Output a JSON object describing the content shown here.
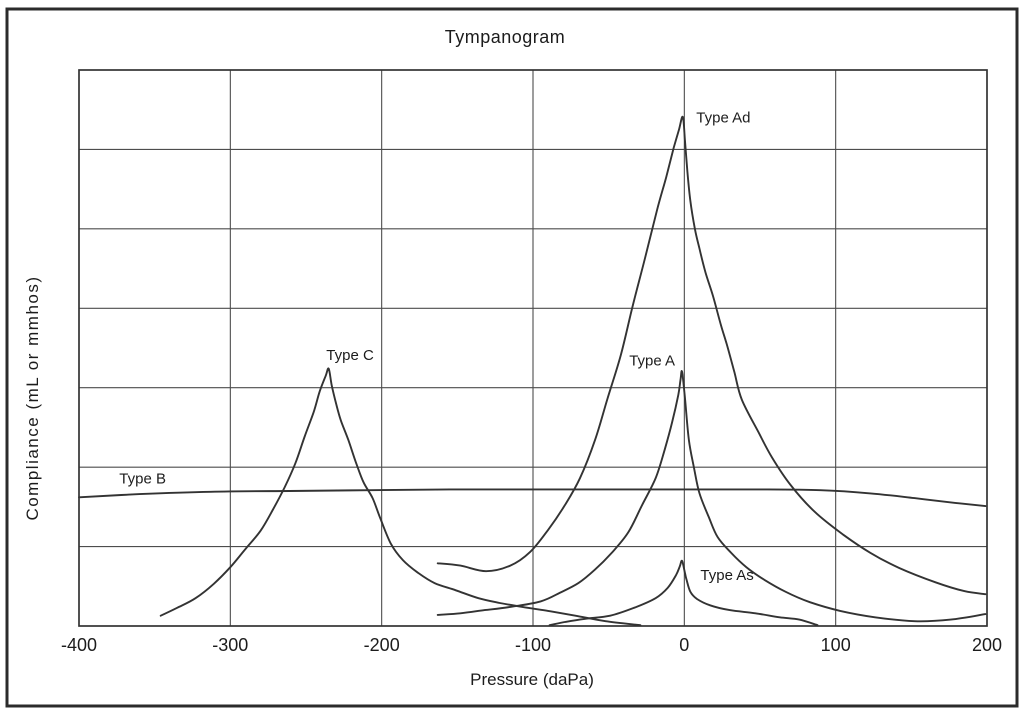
{
  "chart_data": {
    "type": "line",
    "title": "Tympanogram",
    "xlabel": "Pressure (daPa)",
    "ylabel": "Compliance (mL or mmhos)",
    "x_range": [
      -400,
      200
    ],
    "y_range": [
      0,
      7
    ],
    "x_ticks": [
      -400,
      -300,
      -200,
      -100,
      0,
      100,
      200
    ],
    "x_tick_labels": [
      "-400",
      "-300",
      "-200",
      "-100",
      "0",
      "100",
      "200"
    ],
    "y_axis_numeric_labels_shown": false,
    "grid": true,
    "y_gridline_rows": 7,
    "legend_position": "inline-labels",
    "series": [
      {
        "name": "Type Ad",
        "peak": {
          "pressure": 0,
          "compliance": 6.4
        },
        "label_pos": {
          "pressure": 7.9,
          "compliance": 6.4
        },
        "points": [
          [
            -163,
            0.79
          ],
          [
            -148,
            0.76
          ],
          [
            -131,
            0.69
          ],
          [
            -115,
            0.76
          ],
          [
            -102,
            0.93
          ],
          [
            -90,
            1.21
          ],
          [
            -79,
            1.52
          ],
          [
            -69,
            1.86
          ],
          [
            -59,
            2.34
          ],
          [
            -51,
            2.85
          ],
          [
            -42,
            3.41
          ],
          [
            -34,
            4.04
          ],
          [
            -26,
            4.63
          ],
          [
            -18,
            5.24
          ],
          [
            -12,
            5.65
          ],
          [
            -7,
            6.02
          ],
          [
            -3.5,
            6.25
          ],
          [
            -1,
            6.41
          ],
          [
            0.4,
            6.12
          ],
          [
            2,
            5.72
          ],
          [
            4,
            5.35
          ],
          [
            7,
            5.0
          ],
          [
            10,
            4.75
          ],
          [
            14,
            4.45
          ],
          [
            19,
            4.15
          ],
          [
            24,
            3.8
          ],
          [
            28,
            3.55
          ],
          [
            33,
            3.2
          ],
          [
            38,
            2.85
          ],
          [
            49,
            2.44
          ],
          [
            58,
            2.12
          ],
          [
            70,
            1.78
          ],
          [
            86,
            1.44
          ],
          [
            105,
            1.15
          ],
          [
            123,
            0.92
          ],
          [
            142,
            0.73
          ],
          [
            166,
            0.55
          ],
          [
            185,
            0.44
          ],
          [
            199,
            0.4
          ]
        ]
      },
      {
        "name": "Type A",
        "peak": {
          "pressure": 0,
          "compliance": 3.2
        },
        "label_pos": {
          "pressure": -36.4,
          "compliance": 3.34
        },
        "points": [
          [
            -163,
            0.14
          ],
          [
            -148,
            0.16
          ],
          [
            -132,
            0.2
          ],
          [
            -115,
            0.24
          ],
          [
            -95,
            0.31
          ],
          [
            -82,
            0.42
          ],
          [
            -70,
            0.54
          ],
          [
            -59,
            0.71
          ],
          [
            -48,
            0.92
          ],
          [
            -37,
            1.18
          ],
          [
            -28,
            1.52
          ],
          [
            -19,
            1.86
          ],
          [
            -13,
            2.22
          ],
          [
            -8,
            2.57
          ],
          [
            -4,
            2.91
          ],
          [
            -2.5,
            3.1
          ],
          [
            -1.5,
            3.2
          ],
          [
            0.5,
            2.85
          ],
          [
            3,
            2.34
          ],
          [
            6.4,
            1.99
          ],
          [
            10,
            1.67
          ],
          [
            16,
            1.38
          ],
          [
            22,
            1.12
          ],
          [
            31,
            0.92
          ],
          [
            41,
            0.74
          ],
          [
            53,
            0.58
          ],
          [
            67,
            0.43
          ],
          [
            83,
            0.3
          ],
          [
            103,
            0.19
          ],
          [
            126,
            0.11
          ],
          [
            152,
            0.06
          ],
          [
            176,
            0.08
          ],
          [
            199,
            0.15
          ]
        ]
      },
      {
        "name": "Type As",
        "peak": {
          "pressure": 0,
          "compliance": 0.82
        },
        "label_pos": {
          "pressure": 10.6,
          "compliance": 0.64
        },
        "points": [
          [
            -89,
            0.01
          ],
          [
            -79,
            0.05
          ],
          [
            -66,
            0.09
          ],
          [
            -49,
            0.13
          ],
          [
            -33,
            0.23
          ],
          [
            -19,
            0.35
          ],
          [
            -11,
            0.48
          ],
          [
            -5.5,
            0.64
          ],
          [
            -3,
            0.75
          ],
          [
            -1.5,
            0.82
          ],
          [
            0.5,
            0.66
          ],
          [
            1.5,
            0.58
          ],
          [
            4,
            0.43
          ],
          [
            8.4,
            0.34
          ],
          [
            17,
            0.26
          ],
          [
            30,
            0.2
          ],
          [
            47,
            0.16
          ],
          [
            63,
            0.11
          ],
          [
            76,
            0.08
          ],
          [
            88,
            0.01
          ]
        ]
      },
      {
        "name": "Type B",
        "peak": {
          "pressure": null,
          "compliance": 1.72
        },
        "label_pos": {
          "pressure": -373.4,
          "compliance": 1.86
        },
        "points": [
          [
            -400,
            1.62
          ],
          [
            -360,
            1.66
          ],
          [
            -313,
            1.69
          ],
          [
            -261,
            1.7
          ],
          [
            -208,
            1.71
          ],
          [
            -155,
            1.72
          ],
          [
            -102,
            1.72
          ],
          [
            -49,
            1.72
          ],
          [
            4,
            1.72
          ],
          [
            50,
            1.72
          ],
          [
            90,
            1.71
          ],
          [
            123,
            1.67
          ],
          [
            152,
            1.61
          ],
          [
            179,
            1.55
          ],
          [
            199,
            1.51
          ]
        ]
      },
      {
        "name": "Type C",
        "peak": {
          "pressure": -235,
          "compliance": 3.24
        },
        "label_pos": {
          "pressure": -236.6,
          "compliance": 3.41
        },
        "points": [
          [
            -346,
            0.13
          ],
          [
            -335,
            0.23
          ],
          [
            -323,
            0.35
          ],
          [
            -311,
            0.53
          ],
          [
            -300,
            0.74
          ],
          [
            -290,
            0.97
          ],
          [
            -280,
            1.2
          ],
          [
            -272,
            1.46
          ],
          [
            -264,
            1.75
          ],
          [
            -257,
            2.05
          ],
          [
            -251,
            2.38
          ],
          [
            -245,
            2.69
          ],
          [
            -241,
            2.95
          ],
          [
            -237,
            3.15
          ],
          [
            -235,
            3.24
          ],
          [
            -233,
            3.03
          ],
          [
            -230,
            2.79
          ],
          [
            -227,
            2.59
          ],
          [
            -222,
            2.34
          ],
          [
            -217,
            2.06
          ],
          [
            -212,
            1.81
          ],
          [
            -206,
            1.61
          ],
          [
            -201,
            1.36
          ],
          [
            -194,
            1.04
          ],
          [
            -186,
            0.83
          ],
          [
            -176,
            0.67
          ],
          [
            -165,
            0.54
          ],
          [
            -151,
            0.45
          ],
          [
            -136,
            0.35
          ],
          [
            -122,
            0.29
          ],
          [
            -107,
            0.24
          ],
          [
            -90,
            0.19
          ],
          [
            -72,
            0.13
          ],
          [
            -52,
            0.06
          ],
          [
            -29,
            0.01
          ]
        ]
      }
    ]
  },
  "colors": {
    "background": "#ffffff",
    "curve": "#333333",
    "grid": "#4d4d4d",
    "plot_border": "#333333",
    "outer_border": "#2b2b2b",
    "text": "#1c1c1c"
  }
}
